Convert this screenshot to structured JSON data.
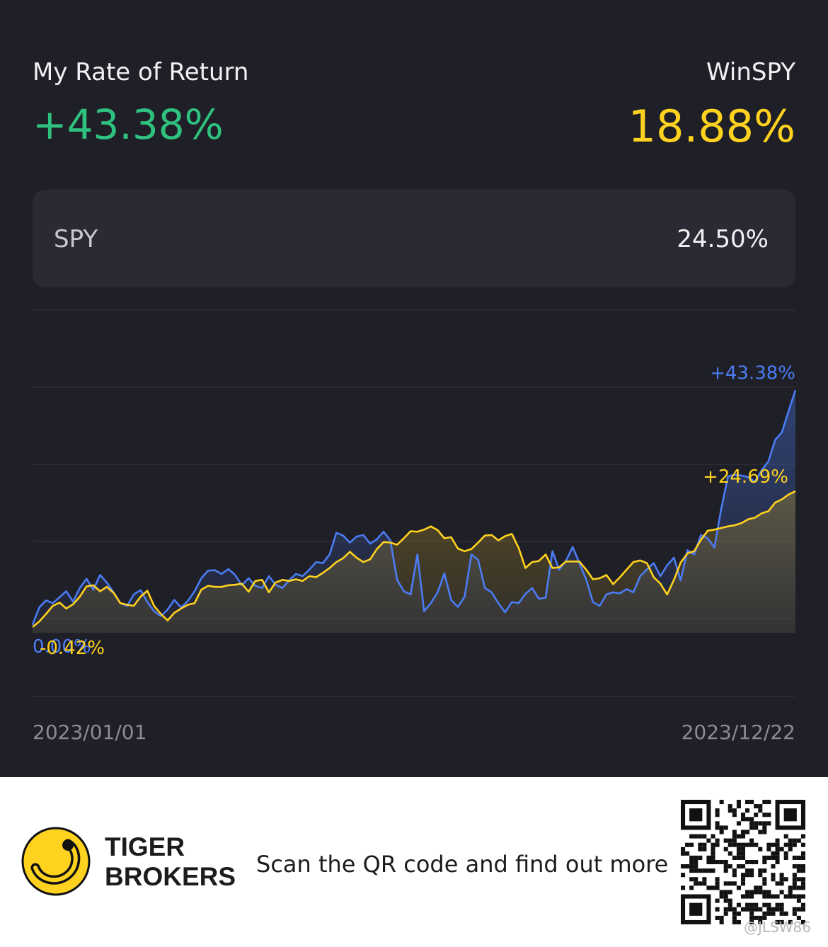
{
  "header": {
    "my_label": "My Rate of Return",
    "my_value": "+43.38%",
    "bench_label": "WinSPY",
    "bench_value": "18.88%"
  },
  "spy_card": {
    "name": "SPY",
    "value": "24.50%"
  },
  "colors": {
    "my": "#4b7cf3",
    "bench": "#ffd21f",
    "green": "#2fc27f"
  },
  "chart_data": {
    "type": "line",
    "x_start": "2023/01/01",
    "x_end": "2023/12/22",
    "start_labels": {
      "my": "0.00%",
      "bench": "-0.42%"
    },
    "end_labels": {
      "my": "+43.38%",
      "bench": "+24.69%"
    },
    "ylim": [
      -2,
      48
    ],
    "series": [
      {
        "key": "my",
        "values": [
          0,
          3.2,
          4.5,
          4.0,
          5.1,
          6.2,
          4.3,
          6.8,
          8.5,
          6.5,
          9.2,
          7.8,
          6.0,
          4.0,
          3.5,
          5.6,
          6.4,
          4.2,
          2.5,
          1.6,
          2.8,
          4.6,
          3.2,
          4.4,
          6.2,
          8.6,
          10.0,
          10.1,
          9.4,
          10.3,
          9.2,
          7.3,
          8.6,
          7.2,
          6.8,
          9.0,
          7.4,
          6.8,
          8.2,
          9.4,
          9.0,
          10.2,
          11.6,
          11.4,
          13.0,
          17.0,
          16.5,
          15.2,
          16.3,
          16.6,
          15.0,
          15.8,
          17.2,
          15.6,
          8.3,
          6.2,
          5.6,
          13.0,
          2.5,
          4.0,
          6.0,
          9.5,
          4.6,
          3.3,
          5.2,
          13.0,
          12.0,
          6.8,
          6.0,
          4.0,
          2.3,
          4.2,
          4.0,
          5.7,
          6.8,
          4.8,
          5.0,
          13.6,
          10.2,
          11.8,
          14.4,
          11.4,
          8.4,
          4.2,
          3.5,
          5.6,
          6.0,
          5.8,
          6.6,
          6.0,
          9.0,
          10.2,
          11.4,
          9.0,
          11.0,
          12.4,
          8.2,
          13.8,
          13.0,
          16.6,
          16.0,
          14.3,
          21.4,
          27.4,
          27.8,
          27.6,
          27.3,
          26.5,
          28.6,
          30.2,
          34.2,
          35.6,
          39.6,
          43.38
        ]
      },
      {
        "key": "bench",
        "values": [
          -0.42,
          0.6,
          2.0,
          3.5,
          4.1,
          3.0,
          3.8,
          5.2,
          7.1,
          7.3,
          6.2,
          7.0,
          5.9,
          4.0,
          3.7,
          3.5,
          5.2,
          6.3,
          3.5,
          2.0,
          0.8,
          2.2,
          3.0,
          3.7,
          4.0,
          6.5,
          7.2,
          7.0,
          7.0,
          7.3,
          7.4,
          7.6,
          6.1,
          8.1,
          8.3,
          6.0,
          7.8,
          8.3,
          8.1,
          8.4,
          8.1,
          9.0,
          8.8,
          9.6,
          10.5,
          11.6,
          12.3,
          13.5,
          12.4,
          11.6,
          12.1,
          14.0,
          15.3,
          15.2,
          14.8,
          16.0,
          17.3,
          17.2,
          17.6,
          18.2,
          17.5,
          16.0,
          16.2,
          14.1,
          13.6,
          14.0,
          15.2,
          16.5,
          16.6,
          15.6,
          16.4,
          16.8,
          14.2,
          10.5,
          11.6,
          11.8,
          13.0,
          10.5,
          10.6,
          11.7,
          11.7,
          11.7,
          10.2,
          8.4,
          8.6,
          9.2,
          7.5,
          8.8,
          10.2,
          11.6,
          11.9,
          11.4,
          8.8,
          7.6,
          5.6,
          8.3,
          11.5,
          13.2,
          13.6,
          15.7,
          17.4,
          17.6,
          17.9,
          18.2,
          18.4,
          18.8,
          19.5,
          19.8,
          20.6,
          21.0,
          22.6,
          23.2,
          24.1,
          24.69
        ]
      }
    ]
  },
  "footer": {
    "brand_line1": "TIGER",
    "brand_line2": "BROKERS",
    "cta": "Scan the QR code and find out more",
    "watermark": "@JLSW86"
  }
}
